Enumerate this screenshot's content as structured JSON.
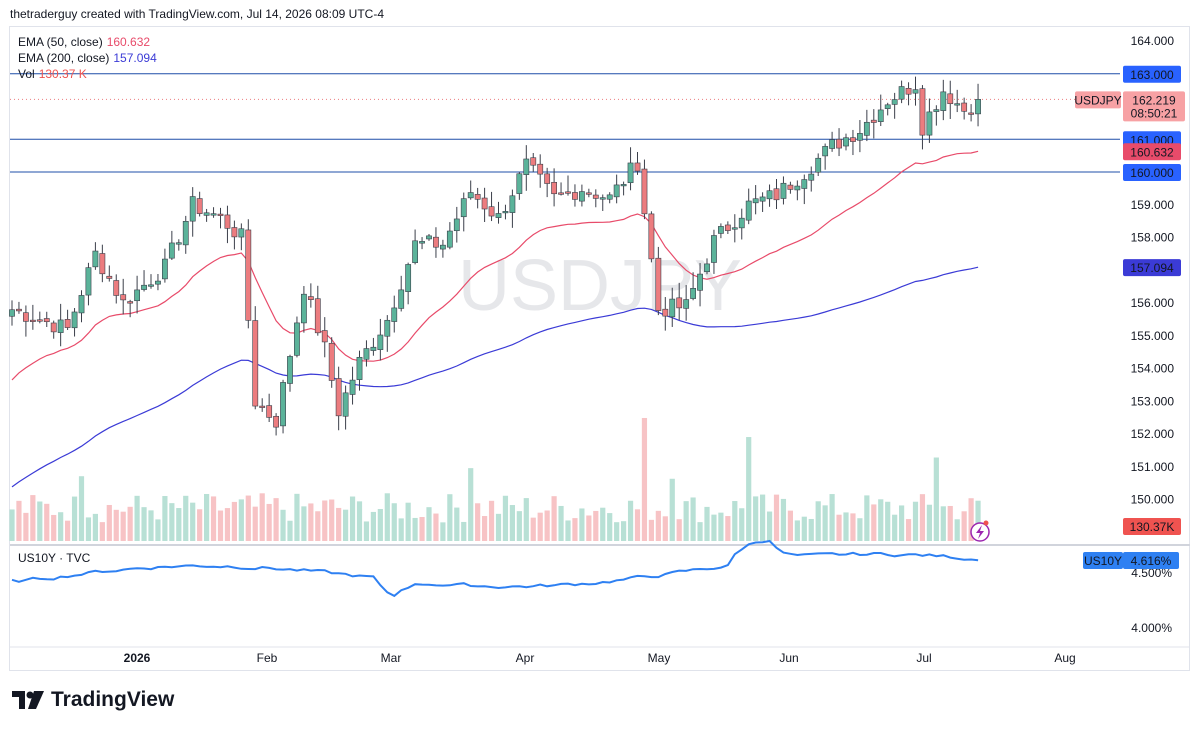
{
  "header": {
    "attribution": "thetraderguy created with TradingView.com, Jul 14, 2026 08:09 UTC-4"
  },
  "legend": {
    "ema50_label": "EMA (50, close)",
    "ema50_value": "160.632",
    "ema200_label": "EMA (200, close)",
    "ema200_value": "157.094",
    "vol_label": "Vol",
    "vol_value": "130.37 K",
    "sub_label": "US10Y · TVC"
  },
  "brand": {
    "name": "TradingView"
  },
  "colors": {
    "up": "#5bb39a",
    "down": "#ec7c7f",
    "ema50": "#e84b6a",
    "ema200": "#3b3bd6",
    "hline": "#2962ff",
    "us10y": "#2e80f2",
    "vol_up": "#b8e0d5",
    "vol_down": "#f7c3c5"
  },
  "chart_data": [
    {
      "type": "candlestick",
      "symbol": "USDJPY",
      "watermark": "USDJPY",
      "y_ticks": [
        "164.000",
        "163.000",
        "162.000",
        "161.000",
        "160.000",
        "159.000",
        "158.000",
        "157.000",
        "156.000",
        "155.000",
        "154.000",
        "153.000",
        "152.000",
        "151.000",
        "150.000"
      ],
      "ylim": [
        149.0,
        164.6
      ],
      "x_ticks": [
        "2026",
        "Feb",
        "Mar",
        "Apr",
        "May",
        "Jun",
        "Jul",
        "Aug"
      ],
      "price_labels": [
        {
          "text": "163.000",
          "color": "#2962ff"
        },
        {
          "text": "161.000",
          "color": "#2962ff"
        },
        {
          "text": "160.632",
          "color": "#e84b6a"
        },
        {
          "text": "160.000",
          "color": "#2962ff"
        },
        {
          "text": "157.094",
          "color": "#3b3bd6"
        },
        {
          "text": "130.37K",
          "color": "#ef5350"
        }
      ],
      "last_price": {
        "symbol": "USDJPY",
        "price": "162.219",
        "countdown": "08:50:21"
      },
      "horizontal_lines": [
        163.0,
        161.0,
        160.0
      ],
      "ema50_last": 160.632,
      "ema200_last": 157.094,
      "volume_last": "130.37K"
    },
    {
      "type": "line",
      "name": "US10Y · TVC",
      "y_ticks": [
        "4.500%",
        "4.000%"
      ],
      "last_label": {
        "symbol": "US10Y",
        "value": "4.616%"
      }
    }
  ]
}
